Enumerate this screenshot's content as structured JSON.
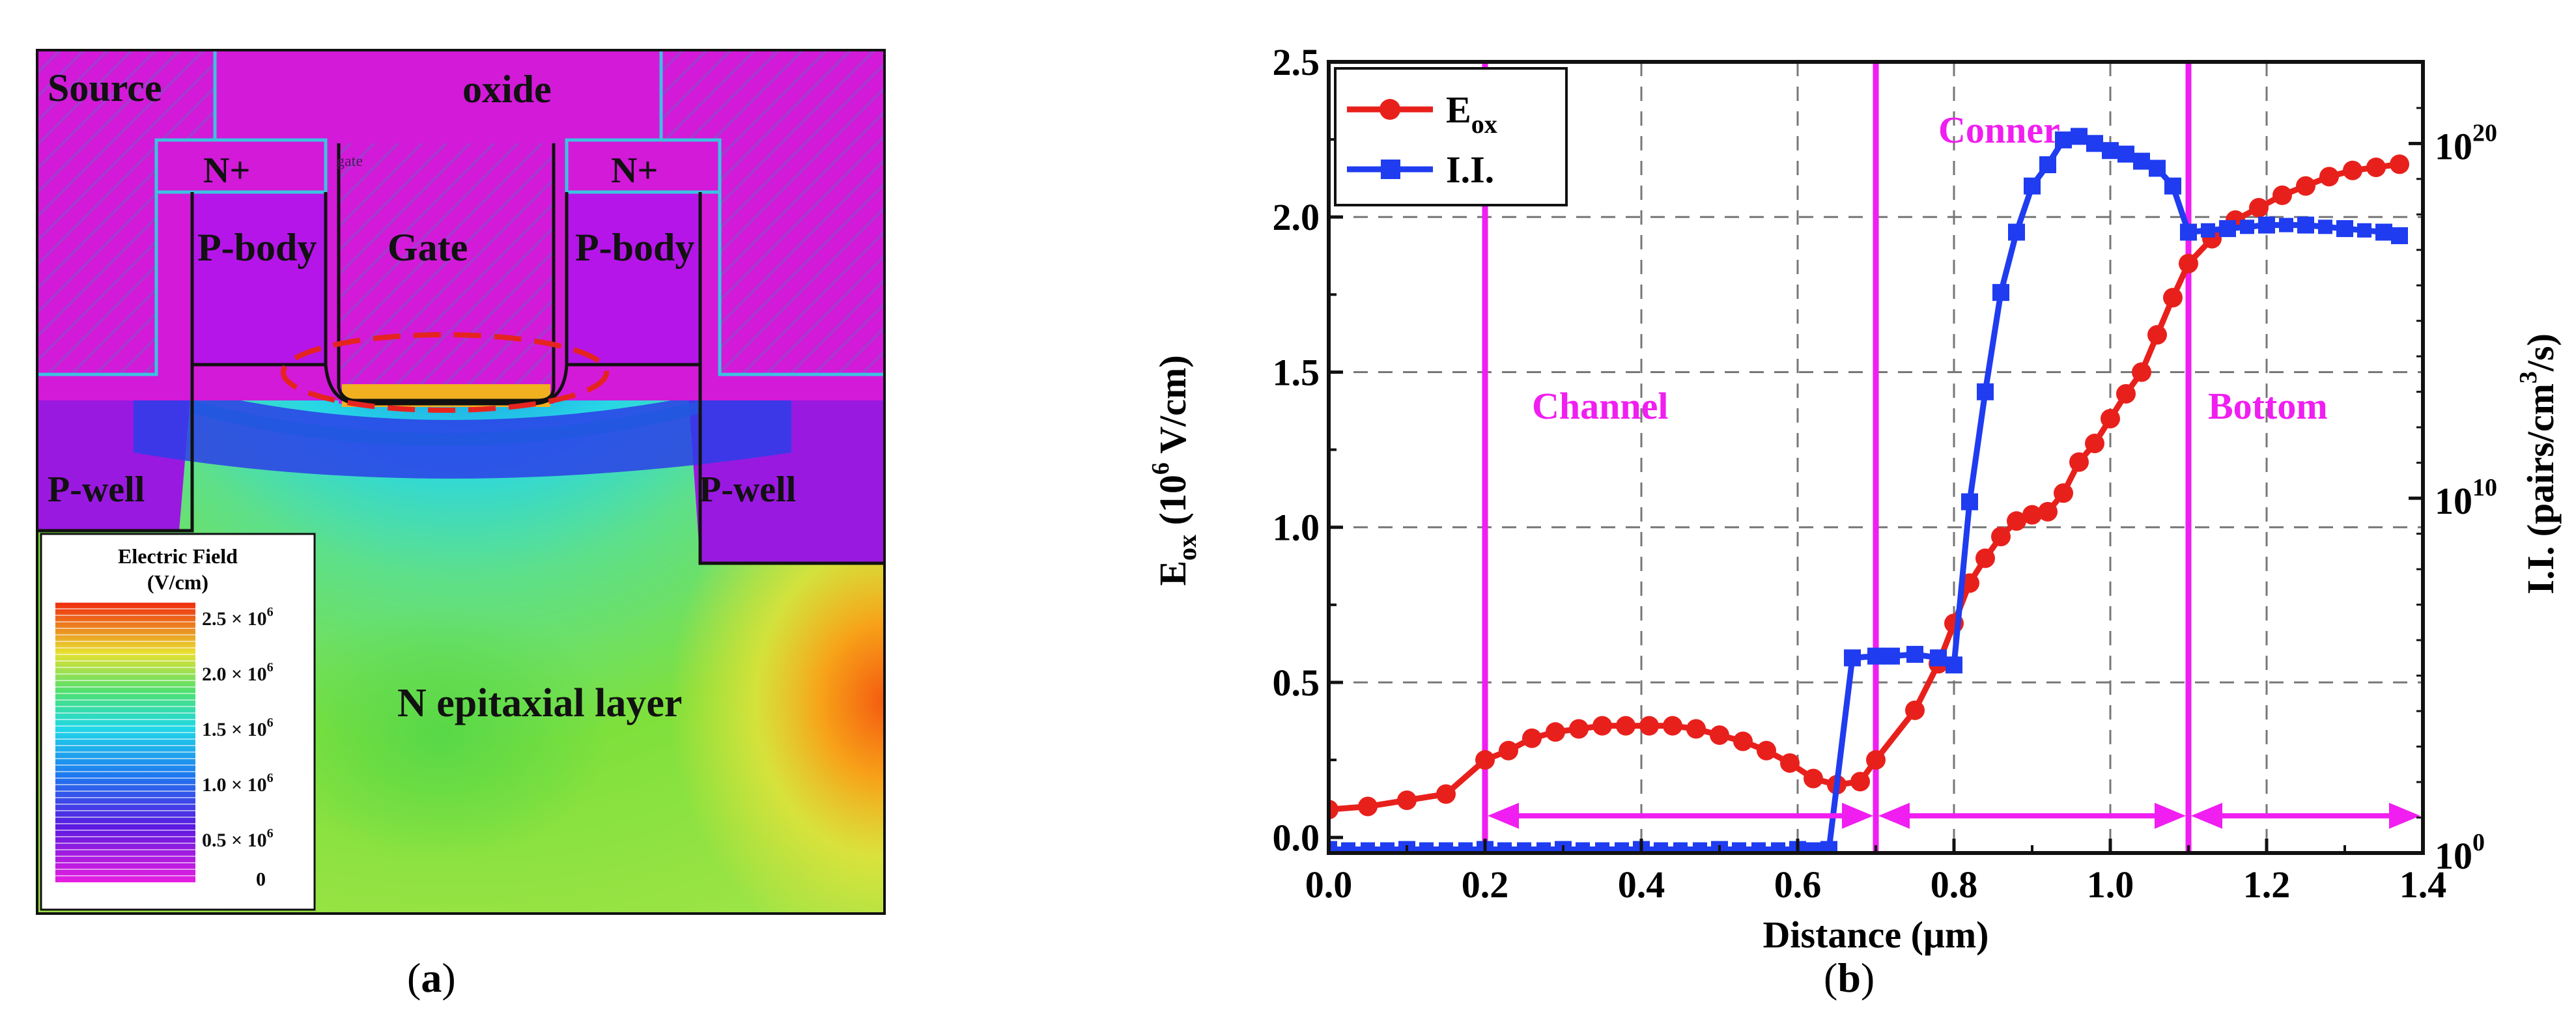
{
  "panel_a": {
    "caption_letter": "a",
    "labels": {
      "source": "Source",
      "oxide": "oxide",
      "n_plus": "N+",
      "gate_small": "gate",
      "p_body": "P-body",
      "gate": "Gate",
      "p_well": "P-well",
      "epi": "N epitaxial layer"
    },
    "legend": {
      "title1": "Electric Field",
      "title2": "(V/cm)",
      "ticks": [
        "2.5",
        "2.0",
        "1.5",
        "1.0",
        "0.5"
      ],
      "tick_suffix": " × 10",
      "tick_exp": "6",
      "zero": "0"
    },
    "colors": {
      "oxide": "#d21ad8",
      "hatch": "#a63ad0",
      "body": "#b515e8",
      "outline": "#3cc2e0",
      "epi": "#6ad84e",
      "ellipse": "#e52420"
    }
  },
  "panel_b": {
    "caption_letter": "b",
    "annotations": {
      "channel": "Channel",
      "conner": "Conner",
      "bottom": "Bottom"
    },
    "colors": {
      "eox": "#e8201c",
      "ii": "#1f3cf0",
      "region": "#f01ef0"
    }
  },
  "chart_data": {
    "type": "line",
    "xlabel": "Distance (μm)",
    "ylabel_left": "E_ox (10^6 V/cm)",
    "ylabel_right": "I.I. (pairs/cm^3/s)",
    "xlim": [
      0,
      1.4
    ],
    "ylim_left": [
      -0.05,
      2.5
    ],
    "ylim_right_log10": [
      0,
      22.3
    ],
    "x_ticks": [
      "0.0",
      "0.2",
      "0.4",
      "0.6",
      "0.8",
      "1.0",
      "1.2",
      "1.4"
    ],
    "y_ticks_left": [
      "0.0",
      "0.5",
      "1.0",
      "1.5",
      "2.0",
      "2.5"
    ],
    "y_ticks_right": [
      {
        "base": "10",
        "exp": "0",
        "log": 0
      },
      {
        "base": "10",
        "exp": "10",
        "log": 10
      },
      {
        "base": "10",
        "exp": "20",
        "log": 20
      }
    ],
    "legend": [
      {
        "name": "E",
        "sub": "ox",
        "color": "#e8201c",
        "marker": "circle"
      },
      {
        "name": "I.I.",
        "sub": "",
        "color": "#1f3cf0",
        "marker": "square"
      }
    ],
    "region_lines_x": [
      0.2,
      0.7,
      1.1
    ],
    "series": [
      {
        "name": "Eox",
        "axis": "left",
        "x": [
          0.0,
          0.05,
          0.1,
          0.15,
          0.2,
          0.23,
          0.26,
          0.29,
          0.32,
          0.35,
          0.38,
          0.41,
          0.44,
          0.47,
          0.5,
          0.53,
          0.56,
          0.59,
          0.62,
          0.65,
          0.68,
          0.7,
          0.75,
          0.78,
          0.8,
          0.82,
          0.84,
          0.86,
          0.88,
          0.9,
          0.92,
          0.94,
          0.96,
          0.98,
          1.0,
          1.02,
          1.04,
          1.06,
          1.08,
          1.1,
          1.13,
          1.16,
          1.19,
          1.22,
          1.25,
          1.28,
          1.31,
          1.34,
          1.37
        ],
        "y": [
          0.09,
          0.1,
          0.12,
          0.14,
          0.25,
          0.28,
          0.32,
          0.34,
          0.35,
          0.36,
          0.36,
          0.36,
          0.36,
          0.35,
          0.33,
          0.31,
          0.28,
          0.24,
          0.19,
          0.17,
          0.18,
          0.25,
          0.41,
          0.56,
          0.69,
          0.82,
          0.9,
          0.97,
          1.02,
          1.04,
          1.05,
          1.11,
          1.21,
          1.27,
          1.35,
          1.43,
          1.5,
          1.62,
          1.74,
          1.85,
          1.93,
          1.99,
          2.03,
          2.07,
          2.1,
          2.13,
          2.15,
          2.16,
          2.17
        ]
      },
      {
        "name": "I.I.",
        "axis": "right_log10",
        "x": [
          0.0,
          0.1,
          0.2,
          0.3,
          0.4,
          0.5,
          0.6,
          0.64,
          0.67,
          0.7,
          0.72,
          0.75,
          0.78,
          0.8,
          0.82,
          0.84,
          0.86,
          0.88,
          0.9,
          0.92,
          0.94,
          0.96,
          0.98,
          1.0,
          1.02,
          1.04,
          1.06,
          1.08,
          1.1,
          1.15,
          1.2,
          1.25,
          1.3,
          1.35,
          1.37
        ],
        "y_log10": [
          0.1,
          0.1,
          0.1,
          0.1,
          0.1,
          0.1,
          0.1,
          0.1,
          5.5,
          5.55,
          5.55,
          5.6,
          5.5,
          5.3,
          9.9,
          13.0,
          15.8,
          17.5,
          18.8,
          19.4,
          20.1,
          20.2,
          20.0,
          19.8,
          19.7,
          19.5,
          19.3,
          18.8,
          17.5,
          17.6,
          17.7,
          17.7,
          17.6,
          17.5,
          17.4
        ]
      }
    ]
  }
}
